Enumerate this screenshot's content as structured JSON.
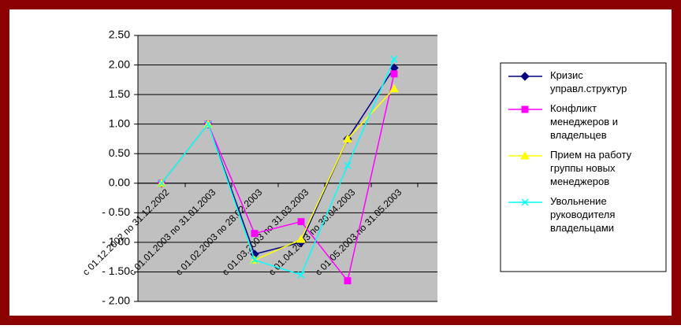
{
  "chart_data": {
    "type": "line",
    "categories": [
      "с 01.12.2002 по 31.12.2002",
      "с 01.01.2003 по 31.01.2003",
      "с 01.02.2003 по 28.02.2003",
      "с 01.03.2003 по 31.03.2003",
      "с 01.04.2003 по 30.04.2003",
      "с 01.05.2003 по 31.05.2003"
    ],
    "series": [
      {
        "name": "Кризис управл.структур",
        "color": "#000080",
        "marker": "diamond",
        "values": [
          0,
          1,
          -1.2,
          -1.0,
          0.75,
          1.95
        ]
      },
      {
        "name": "Конфликт менеджеров и владельцев",
        "color": "#ff00ff",
        "marker": "square",
        "values": [
          0,
          1,
          -0.85,
          -0.65,
          -1.65,
          1.85
        ]
      },
      {
        "name": "Прием на работу группы новых менеджеров",
        "color": "#ffff00",
        "marker": "triangle",
        "values": [
          0,
          1,
          -1.3,
          -0.95,
          0.75,
          1.6
        ]
      },
      {
        "name": "Увольнение руководителя владельцами",
        "color": "#00ffff",
        "marker": "x",
        "values": [
          0,
          1,
          -1.3,
          -1.55,
          0.3,
          2.1
        ]
      }
    ],
    "ylim": [
      -2,
      2.5
    ],
    "yticks": [
      {
        "value": 2.5,
        "label": "2.50"
      },
      {
        "value": 2,
        "label": "2.00"
      },
      {
        "value": 1.5,
        "label": "1.50"
      },
      {
        "value": 1,
        "label": "1.00"
      },
      {
        "value": 0.5,
        "label": "0.50"
      },
      {
        "value": 0,
        "label": "0.00"
      },
      {
        "value": -0.5,
        "label": "- 0.50"
      },
      {
        "value": -1,
        "label": "- 1.00"
      },
      {
        "value": -1.5,
        "label": "- 1.50"
      },
      {
        "value": -2,
        "label": "- 2.00"
      }
    ],
    "grid": true,
    "legend": "right"
  }
}
